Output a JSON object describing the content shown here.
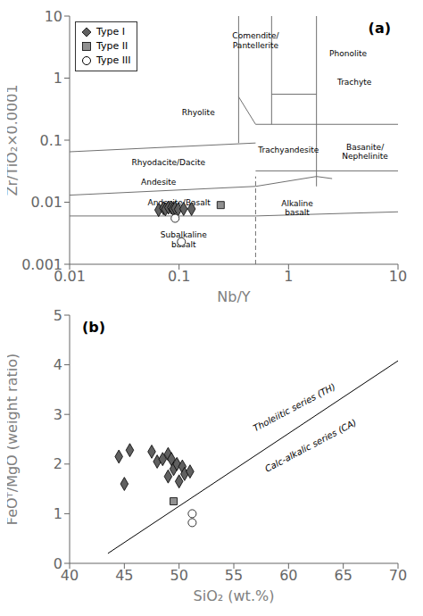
{
  "chart_data": [
    {
      "type": "scatter",
      "title": "(a)",
      "xlabel": "Nb/Y",
      "ylabel": "Zr/TiO₂×0.0001",
      "log": true,
      "xlim": [
        0.01,
        10
      ],
      "ylim": [
        0.001,
        10
      ],
      "xticks": [
        0.01,
        0.1,
        1,
        10
      ],
      "yticks": [
        0.001,
        0.01,
        0.1,
        1,
        10
      ],
      "grid": false,
      "legend": "upper left",
      "series": [
        {
          "name": "Type I",
          "color": "#606060",
          "marker": "diamond",
          "x": [
            0.065,
            0.072,
            0.075,
            0.08,
            0.085,
            0.088,
            0.092,
            0.098,
            0.11,
            0.13
          ],
          "y": [
            0.0075,
            0.008,
            0.0077,
            0.0082,
            0.0082,
            0.0078,
            0.008,
            0.0077,
            0.0078,
            0.0078
          ]
        },
        {
          "name": "Type II",
          "color": "#909090",
          "marker": "square",
          "x": [
            0.24
          ],
          "y": [
            0.009
          ]
        },
        {
          "name": "Type III",
          "color": "#ffffff",
          "marker": "circle",
          "x": [
            0.092,
            0.105
          ],
          "y": [
            0.0055,
            0.0023
          ]
        }
      ],
      "boundaries": [
        {
          "x": [
            0.5,
            0.5
          ],
          "y": [
            0.001,
            0.026
          ],
          "color": "#707070",
          "line_style": "dashed"
        },
        {
          "x": [
            0.01,
            0.5
          ],
          "y": [
            0.006,
            0.006
          ],
          "color": "#707070",
          "line_style": "solid"
        },
        {
          "x": [
            0.5,
            10
          ],
          "y": [
            0.006,
            0.007
          ],
          "color": "#707070",
          "line_style": "solid"
        },
        {
          "x": [
            0.01,
            0.5
          ],
          "y": [
            0.013,
            0.018
          ],
          "color": "#707070",
          "line_style": "solid"
        },
        {
          "x": [
            0.5,
            1.8
          ],
          "y": [
            0.018,
            0.026
          ],
          "color": "#707070",
          "line_style": "solid"
        },
        {
          "x": [
            1.8,
            2.5
          ],
          "y": [
            0.026,
            0.024
          ],
          "color": "#707070",
          "line_style": "solid"
        },
        {
          "x": [
            0.01,
            0.5
          ],
          "y": [
            0.065,
            0.09
          ],
          "color": "#707070",
          "line_style": "solid"
        },
        {
          "x": [
            0.5,
            10
          ],
          "y": [
            0.18,
            0.18
          ],
          "color": "#707070",
          "line_style": "solid"
        },
        {
          "x": [
            0.35,
            0.35
          ],
          "y": [
            0.09,
            10
          ],
          "color": "#707070",
          "line_style": "solid"
        },
        {
          "x": [
            0.35,
            0.5
          ],
          "y": [
            0.5,
            0.18
          ],
          "color": "#707070",
          "line_style": "solid"
        },
        {
          "x": [
            0.7,
            0.7
          ],
          "y": [
            0.18,
            10
          ],
          "color": "#707070",
          "line_style": "solid"
        },
        {
          "x": [
            1.8,
            1.8
          ],
          "y": [
            0.018,
            10
          ],
          "color": "#707070",
          "line_style": "solid"
        },
        {
          "x": [
            0.5,
            1.8
          ],
          "y": [
            0.032,
            0.032
          ],
          "color": "#707070",
          "line_style": "solid"
        },
        {
          "x": [
            1.8,
            10
          ],
          "y": [
            0.032,
            0.032
          ],
          "color": "#707070",
          "line_style": "solid"
        },
        {
          "x": [
            0.7,
            1.8
          ],
          "y": [
            0.55,
            0.55
          ],
          "color": "#707070",
          "line_style": "solid"
        }
      ],
      "annotations": [
        {
          "text": "Phonolite",
          "x": 3.5,
          "y": 2.5
        },
        {
          "text": "Comendite/\nPantellerite",
          "x": 0.5,
          "y": 4.0
        },
        {
          "text": "Rhyolite",
          "x": 0.15,
          "y": 0.28
        },
        {
          "text": "Trachyte",
          "x": 4.0,
          "y": 0.85
        },
        {
          "text": "Rhyodacite/Dacite",
          "x": 0.08,
          "y": 0.043
        },
        {
          "text": "Trachyandesite",
          "x": 1.0,
          "y": 0.07
        },
        {
          "text": "Andesite",
          "x": 0.065,
          "y": 0.021
        },
        {
          "text": "Andesite/Basalt",
          "x": 0.1,
          "y": 0.01
        },
        {
          "text": "Subalkaline\nbasalt",
          "x": 0.11,
          "y": 0.0025
        },
        {
          "text": "Alkaline\nbasalt",
          "x": 1.2,
          "y": 0.008
        },
        {
          "text": "Basanite/\nNephelinite",
          "x": 5.0,
          "y": 0.065
        }
      ]
    },
    {
      "type": "scatter",
      "title": "(b)",
      "xlabel": "SiO₂ (wt.%)",
      "ylabel": "FeOᵀ/MgO (weight ratio)",
      "xlim": [
        40,
        70
      ],
      "ylim": [
        0,
        5
      ],
      "xticks": [
        40,
        45,
        50,
        55,
        60,
        65,
        70
      ],
      "yticks": [
        0,
        1,
        2,
        3,
        4,
        5
      ],
      "grid": false,
      "series": [
        {
          "name": "Type I",
          "color": "#606060",
          "marker": "diamond",
          "x": [
            44.5,
            45.0,
            45.5,
            47.5,
            48.0,
            48.5,
            49.0,
            49.0,
            49.3,
            49.5,
            49.8,
            50.0,
            50.3,
            50.5,
            51.0
          ],
          "y": [
            2.15,
            1.6,
            2.28,
            2.25,
            2.05,
            2.1,
            2.2,
            1.75,
            2.1,
            1.9,
            2.0,
            1.65,
            1.95,
            1.8,
            1.85
          ]
        },
        {
          "name": "Type II",
          "color": "#909090",
          "marker": "square",
          "x": [
            49.5
          ],
          "y": [
            1.25
          ]
        },
        {
          "name": "Type III",
          "color": "#ffffff",
          "marker": "circle",
          "x": [
            51.2,
            51.2
          ],
          "y": [
            1.0,
            0.82
          ]
        }
      ],
      "boundaries": [
        {
          "x": [
            43.5,
            70
          ],
          "y": [
            0.2,
            4.08
          ],
          "color": "#000000",
          "line_style": "solid"
        }
      ],
      "annotations": [
        {
          "text": "Tholeiitic series (TH)",
          "x": 60.5,
          "y": 3.15
        },
        {
          "text": "Calc-alkalic series (CA)",
          "x": 62.0,
          "y": 2.38
        }
      ]
    }
  ]
}
